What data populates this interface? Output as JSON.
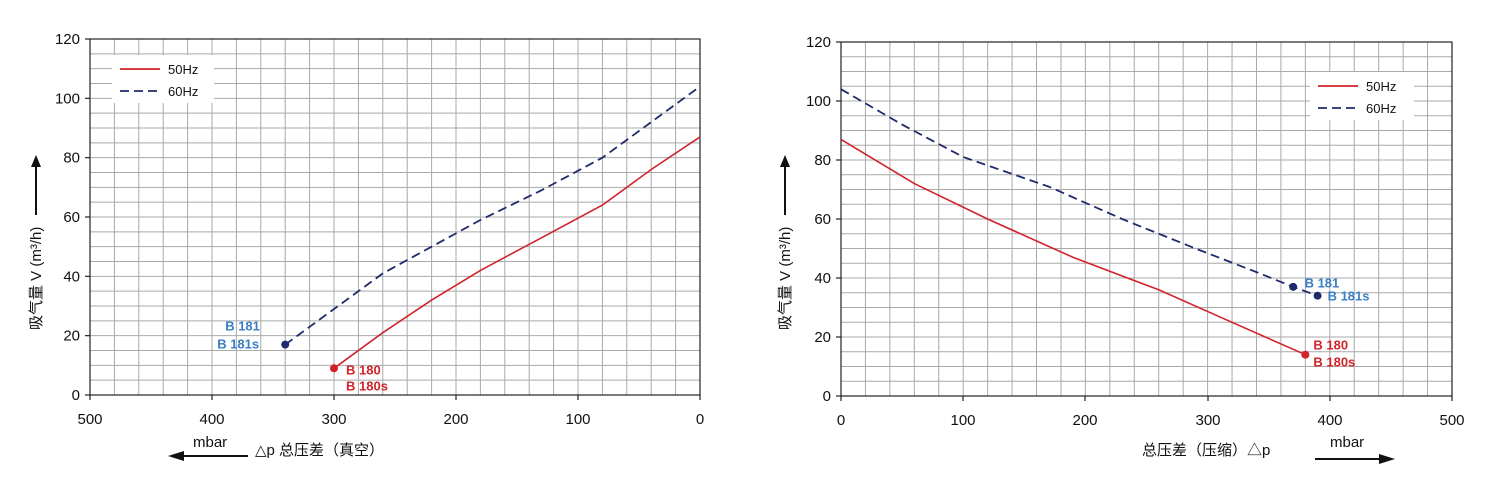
{
  "colors": {
    "red": "#d1232a",
    "blue": "#1f2a6b",
    "label_blue": "#3a7ec5",
    "grid": "#a9a9a9",
    "axis": "#222222"
  },
  "chart_data": [
    {
      "type": "line",
      "xlim": [
        500,
        0
      ],
      "ylim": [
        0,
        120
      ],
      "x_ticks": [
        "500",
        "400",
        "300",
        "200",
        "100",
        "0"
      ],
      "y_ticks": [
        "0",
        "20",
        "40",
        "60",
        "80",
        "100",
        "120"
      ],
      "ylabel": "吸气量 V (m³/h)",
      "xlabel": "△p  总压差（真空）",
      "unit": "mbar",
      "grid": true,
      "legend": "top-left",
      "series": [
        {
          "name": "50Hz",
          "color": "#d1232a",
          "dash": "solid",
          "points": [
            [
              300,
              9
            ],
            [
              260,
              21
            ],
            [
              220,
              32
            ],
            [
              180,
              42
            ],
            [
              130,
              53
            ],
            [
              80,
              64
            ],
            [
              40,
              76
            ],
            [
              0,
              87
            ]
          ],
          "end_label": [
            "B 180",
            "B 180s"
          ]
        },
        {
          "name": "60Hz",
          "color": "#1f2a6b",
          "dash": "dashed",
          "points": [
            [
              340,
              17
            ],
            [
              300,
              29
            ],
            [
              260,
              41
            ],
            [
              220,
              50
            ],
            [
              180,
              59
            ],
            [
              130,
              69
            ],
            [
              80,
              80
            ],
            [
              40,
              92
            ],
            [
              0,
              104
            ]
          ],
          "end_label": [
            "B 181",
            "B 181s"
          ]
        }
      ]
    },
    {
      "type": "line",
      "xlim": [
        0,
        500
      ],
      "ylim": [
        0,
        120
      ],
      "x_ticks": [
        "0",
        "100",
        "200",
        "300",
        "400",
        "500"
      ],
      "y_ticks": [
        "0",
        "20",
        "40",
        "60",
        "80",
        "100",
        "120"
      ],
      "ylabel": "吸气量 V (m³/h)",
      "xlabel": "总压差（压缩）△p",
      "unit": "mbar",
      "grid": true,
      "legend": "top-right",
      "series": [
        {
          "name": "50Hz",
          "color": "#d1232a",
          "dash": "solid",
          "points": [
            [
              0,
              87
            ],
            [
              60,
              72
            ],
            [
              120,
              60
            ],
            [
              190,
              47
            ],
            [
              260,
              36
            ],
            [
              320,
              25
            ],
            [
              380,
              14
            ]
          ],
          "end_label": [
            "B 180",
            "B 180s"
          ]
        },
        {
          "name": "60Hz",
          "color": "#1f2a6b",
          "dash": "dashed",
          "points": [
            [
              0,
              104
            ],
            [
              50,
              92
            ],
            [
              100,
              81
            ],
            [
              170,
              71
            ],
            [
              230,
              60
            ],
            [
              290,
              50
            ],
            [
              340,
              42
            ],
            [
              370,
              37
            ],
            [
              390,
              34
            ]
          ],
          "end_label": [
            "B 181",
            "B 181s"
          ]
        }
      ]
    }
  ]
}
